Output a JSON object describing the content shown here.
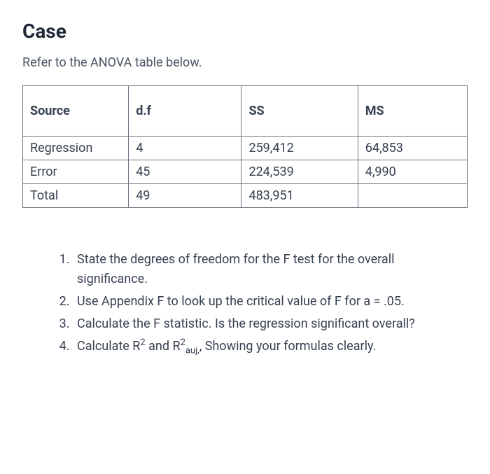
{
  "title": "Case",
  "subtitle": "Refer to the ANOVA table below.",
  "table": {
    "columns": [
      "Source",
      "d.f",
      "SS",
      "MS"
    ],
    "rows": [
      [
        "Regression",
        "4",
        "259,412",
        "64,853"
      ],
      [
        "Error",
        "45",
        "224,539",
        "4,990"
      ],
      [
        "Total",
        "49",
        "483,951",
        ""
      ]
    ]
  },
  "questions": {
    "q1": "State the degrees of freedom for the F test for the overall significance.",
    "q2": "Use Appendix F to look up the critical value of F for a = .05.",
    "q3": "Calculate the F statistic.  Is the regression significant overall?",
    "q4_prefix": "Calculate R",
    "q4_sup1": "2",
    "q4_mid": " and R",
    "q4_sup2": "2",
    "q4_sub": "auj,",
    "q4_suffix": ", Showing your formulas clearly."
  }
}
